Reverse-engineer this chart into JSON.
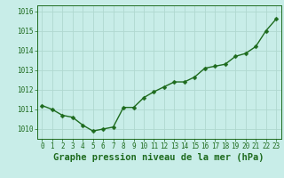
{
  "x": [
    0,
    1,
    2,
    3,
    4,
    5,
    6,
    7,
    8,
    9,
    10,
    11,
    12,
    13,
    14,
    15,
    16,
    17,
    18,
    19,
    20,
    21,
    22,
    23
  ],
  "y": [
    1011.2,
    1011.0,
    1010.7,
    1010.6,
    1010.2,
    1009.9,
    1010.0,
    1010.1,
    1011.1,
    1011.1,
    1011.6,
    1011.9,
    1012.15,
    1012.4,
    1012.4,
    1012.65,
    1013.1,
    1013.2,
    1013.3,
    1013.7,
    1013.85,
    1014.2,
    1015.0,
    1015.6
  ],
  "line_color": "#1e6b1e",
  "marker_color": "#1e6b1e",
  "bg_color": "#c8ede8",
  "grid_color": "#b0d8d0",
  "title": "Graphe pression niveau de la mer (hPa)",
  "xlim": [
    -0.5,
    23.5
  ],
  "ylim": [
    1009.5,
    1016.3
  ],
  "yticks": [
    1010,
    1011,
    1012,
    1013,
    1014,
    1015,
    1016
  ],
  "xticks": [
    0,
    1,
    2,
    3,
    4,
    5,
    6,
    7,
    8,
    9,
    10,
    11,
    12,
    13,
    14,
    15,
    16,
    17,
    18,
    19,
    20,
    21,
    22,
    23
  ],
  "tick_label_fontsize": 5.5,
  "title_fontsize": 7.5,
  "marker_size": 2.5,
  "line_width": 1.0
}
